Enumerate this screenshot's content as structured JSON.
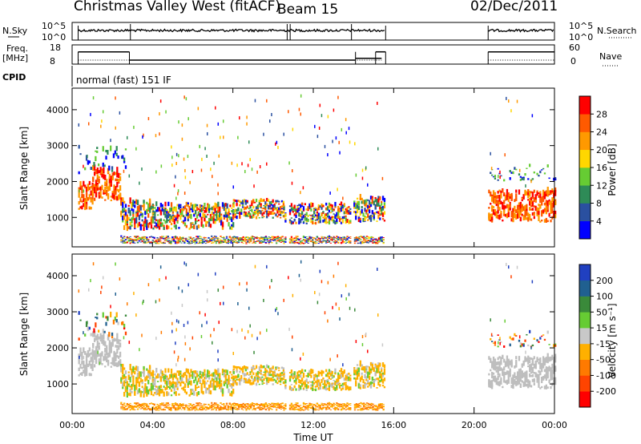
{
  "header": {
    "station": "Christmas Valley West (fitACF)",
    "beam": "Beam 15",
    "date": "02/Dec/2011"
  },
  "colors": {
    "power_scale": [
      "#0000ff",
      "#2a50a0",
      "#2e8b57",
      "#66cc33",
      "#ffd700",
      "#ff9900",
      "#ff5a00",
      "#ff0000"
    ],
    "velocity_scale": [
      "#2040c0",
      "#206090",
      "#3a8a3a",
      "#66cc33",
      "#c8c8c8",
      "#ffb000",
      "#ff7a00",
      "#ff4400",
      "#ff0000"
    ],
    "ground_scatter": "#bebebe"
  },
  "chart_data": [
    {
      "id": "nsky-nsearch",
      "type": "line",
      "left_label": "N.Sky",
      "right_label": "N.Search",
      "left_ticks": [
        "10^5",
        "10^0"
      ],
      "right_ticks": [
        "10^5",
        "10^0"
      ],
      "x_range_hours": [
        0,
        24
      ],
      "data_gaps_hours": [
        [
          15.6,
          20.7
        ]
      ]
    },
    {
      "id": "freq-nave",
      "type": "line",
      "left_label": "Freq.\n[MHz]",
      "right_label": "Nave",
      "left_ticks": [
        "18",
        "8"
      ],
      "right_ticks": [
        "60",
        "0"
      ],
      "freq_segments": [
        {
          "x": [
            0.3,
            2.85
          ],
          "value": 16.5
        },
        {
          "x": [
            2.85,
            14.1
          ],
          "value": 10.8
        },
        {
          "x": [
            14.1,
            15.4
          ],
          "value": 12.0
        },
        {
          "x": [
            15.1,
            15.6
          ],
          "value": 16.5
        },
        {
          "x": [
            20.7,
            24.0
          ],
          "value": 16.5
        }
      ]
    },
    {
      "id": "cpid",
      "type": "table",
      "label": "CPID",
      "mode_text": "normal (fast) 151 IF"
    },
    {
      "id": "power",
      "type": "heatmap",
      "ylabel": "Slant Range [km]",
      "yticks": [
        1000,
        2000,
        3000,
        4000
      ],
      "ylim": [
        180,
        4600
      ],
      "xlim": [
        0,
        24
      ],
      "colorbar_label": "Power [dB]",
      "colorbar_ticks": [
        4,
        8,
        12,
        16,
        20,
        24,
        28
      ],
      "colorbar_range": [
        0,
        32
      ]
    },
    {
      "id": "velocity",
      "type": "heatmap",
      "ylabel": "Slant Range [km]",
      "yticks": [
        1000,
        2000,
        3000,
        4000
      ],
      "ylim": [
        180,
        4600
      ],
      "xlim": [
        0,
        24
      ],
      "xlabel": "Time UT",
      "xticks": [
        "00:00",
        "04:00",
        "08:00",
        "12:00",
        "16:00",
        "20:00",
        "00:00"
      ],
      "colorbar_label": "Velocity [m s⁻¹]",
      "colorbar_ticks": [
        200,
        100,
        50,
        15,
        -15,
        -50,
        -100,
        -200
      ]
    }
  ]
}
